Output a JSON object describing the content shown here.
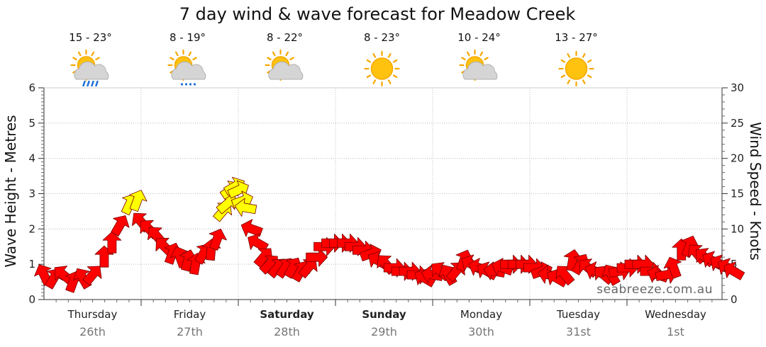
{
  "chart_data": {
    "type": "line",
    "title": "7 day wind & wave forecast for Meadow Creek",
    "ylabel_left": "Wave Height - Metres",
    "ylabel_right": "Wind Speed - Knots",
    "ylim_left": [
      0,
      6
    ],
    "ylim_right": [
      0,
      30
    ],
    "yticks_left": [
      "0",
      "1",
      "2",
      "3",
      "4",
      "5",
      "6"
    ],
    "yticks_right": [
      "0",
      "5",
      "10",
      "15",
      "20",
      "25",
      "30"
    ],
    "credit": "seabreeze.com.au",
    "days": [
      {
        "name": "Thursday",
        "date": "26th",
        "bold": false,
        "temp": "15 - 23°",
        "icon": "sun-cloud-rain-icon"
      },
      {
        "name": "Friday",
        "date": "27th",
        "bold": false,
        "temp": "8 - 19°",
        "icon": "sun-cloud-drizzle-icon"
      },
      {
        "name": "Saturday",
        "date": "28th",
        "bold": true,
        "temp": "8 - 22°",
        "icon": "sun-cloud-icon"
      },
      {
        "name": "Sunday",
        "date": "29th",
        "bold": true,
        "temp": "8 - 23°",
        "icon": "sun-icon"
      },
      {
        "name": "Monday",
        "date": "30th",
        "bold": false,
        "temp": "10 - 24°",
        "icon": "sun-cloud-icon"
      },
      {
        "name": "Tuesday",
        "date": "31st",
        "bold": false,
        "temp": "13 - 27°",
        "icon": "sun-icon"
      },
      {
        "name": "Wednesday",
        "date": "1st",
        "bold": false,
        "temp": "",
        "icon": ""
      }
    ],
    "series": [
      {
        "unit": "knots",
        "color_low": "#ff0000",
        "color_high": "#ffff00",
        "points": [
          {
            "t": 0.0,
            "speed": 3.5,
            "dir": 25
          },
          {
            "t": 0.1,
            "speed": 3.0,
            "dir": -30
          },
          {
            "t": 0.2,
            "speed": 3.5,
            "dir": 50
          },
          {
            "t": 0.3,
            "speed": 2.5,
            "dir": -20
          },
          {
            "t": 0.4,
            "speed": 3.0,
            "dir": 30
          },
          {
            "t": 0.5,
            "speed": 3.5,
            "dir": -40
          },
          {
            "t": 0.62,
            "speed": 6.0,
            "dir": 0
          },
          {
            "t": 0.7,
            "speed": 8.0,
            "dir": 0
          },
          {
            "t": 0.78,
            "speed": 10.5,
            "dir": -30
          },
          {
            "t": 0.88,
            "speed": 13.5,
            "dir": -25
          },
          {
            "t": 0.96,
            "speed": 14.0,
            "dir": -20
          },
          {
            "t": 1.0,
            "speed": 11.0,
            "dir": 40
          },
          {
            "t": 1.08,
            "speed": 10.0,
            "dir": 45
          },
          {
            "t": 1.16,
            "speed": 9.0,
            "dir": 40
          },
          {
            "t": 1.24,
            "speed": 7.5,
            "dir": 45
          },
          {
            "t": 1.32,
            "speed": 6.5,
            "dir": -20
          },
          {
            "t": 1.4,
            "speed": 6.0,
            "dir": 20
          },
          {
            "t": 1.48,
            "speed": 5.5,
            "dir": -15
          },
          {
            "t": 1.56,
            "speed": 5.0,
            "dir": -10
          },
          {
            "t": 1.64,
            "speed": 6.5,
            "dir": -30
          },
          {
            "t": 1.72,
            "speed": 7.0,
            "dir": -5
          },
          {
            "t": 1.78,
            "speed": 8.5,
            "dir": -20
          },
          {
            "t": 1.84,
            "speed": 12.5,
            "dir": -40
          },
          {
            "t": 1.88,
            "speed": 13.5,
            "dir": -50
          },
          {
            "t": 1.92,
            "speed": 15.5,
            "dir": -55
          },
          {
            "t": 1.96,
            "speed": 16.0,
            "dir": -60
          },
          {
            "t": 2.0,
            "speed": 15.5,
            "dir": -65
          },
          {
            "t": 2.04,
            "speed": 14.0,
            "dir": -70
          },
          {
            "t": 2.08,
            "speed": 13.0,
            "dir": 80
          },
          {
            "t": 2.14,
            "speed": 10.0,
            "dir": 70
          },
          {
            "t": 2.2,
            "speed": 8.0,
            "dir": 60
          },
          {
            "t": 2.26,
            "speed": 6.0,
            "dir": -40
          },
          {
            "t": 2.32,
            "speed": 5.0,
            "dir": -45
          },
          {
            "t": 2.4,
            "speed": 4.5,
            "dir": -40
          },
          {
            "t": 2.48,
            "speed": 4.5,
            "dir": -35
          },
          {
            "t": 2.56,
            "speed": 4.5,
            "dir": -30
          },
          {
            "t": 2.64,
            "speed": 4.0,
            "dir": -30
          },
          {
            "t": 2.72,
            "speed": 4.5,
            "dir": -40
          },
          {
            "t": 2.8,
            "speed": 6.0,
            "dir": -90
          },
          {
            "t": 2.88,
            "speed": 7.5,
            "dir": -90
          },
          {
            "t": 2.96,
            "speed": 8.0,
            "dir": -90
          },
          {
            "t": 3.04,
            "speed": 8.0,
            "dir": -90
          },
          {
            "t": 3.12,
            "speed": 8.0,
            "dir": -90
          },
          {
            "t": 3.2,
            "speed": 7.5,
            "dir": -90
          },
          {
            "t": 3.28,
            "speed": 7.0,
            "dir": -90
          },
          {
            "t": 3.36,
            "speed": 6.5,
            "dir": -70
          },
          {
            "t": 3.44,
            "speed": 5.5,
            "dir": 60
          },
          {
            "t": 3.52,
            "speed": 5.0,
            "dir": 40
          },
          {
            "t": 3.6,
            "speed": 4.5,
            "dir": -90
          },
          {
            "t": 3.68,
            "speed": 4.0,
            "dir": -90
          },
          {
            "t": 3.76,
            "speed": 4.0,
            "dir": -90
          },
          {
            "t": 3.84,
            "speed": 3.5,
            "dir": -90
          },
          {
            "t": 3.92,
            "speed": 3.0,
            "dir": 60
          },
          {
            "t": 4.0,
            "speed": 3.5,
            "dir": 80
          },
          {
            "t": 4.08,
            "speed": 4.0,
            "dir": 50
          },
          {
            "t": 4.16,
            "speed": 3.5,
            "dir": 30
          },
          {
            "t": 4.24,
            "speed": 4.0,
            "dir": -40
          },
          {
            "t": 4.32,
            "speed": 5.5,
            "dir": -20
          },
          {
            "t": 4.4,
            "speed": 5.0,
            "dir": 60
          },
          {
            "t": 4.48,
            "speed": 4.5,
            "dir": 70
          },
          {
            "t": 4.56,
            "speed": 4.0,
            "dir": 60
          },
          {
            "t": 4.64,
            "speed": 4.0,
            "dir": 80
          },
          {
            "t": 4.72,
            "speed": 4.5,
            "dir": 70
          },
          {
            "t": 4.8,
            "speed": 5.0,
            "dir": -90
          },
          {
            "t": 4.88,
            "speed": 5.0,
            "dir": -90
          },
          {
            "t": 4.96,
            "speed": 5.0,
            "dir": -90
          },
          {
            "t": 5.04,
            "speed": 4.5,
            "dir": -90
          },
          {
            "t": 5.12,
            "speed": 4.0,
            "dir": -70
          },
          {
            "t": 5.2,
            "speed": 3.5,
            "dir": 80
          },
          {
            "t": 5.28,
            "speed": 3.0,
            "dir": 60
          },
          {
            "t": 5.36,
            "speed": 3.5,
            "dir": 40
          },
          {
            "t": 5.44,
            "speed": 5.5,
            "dir": -10
          },
          {
            "t": 5.52,
            "speed": 5.0,
            "dir": -30
          },
          {
            "t": 5.6,
            "speed": 4.5,
            "dir": 50
          },
          {
            "t": 5.68,
            "speed": 4.0,
            "dir": 70
          },
          {
            "t": 5.76,
            "speed": 3.5,
            "dir": 50
          },
          {
            "t": 5.84,
            "speed": 3.5,
            "dir": 30
          },
          {
            "t": 5.92,
            "speed": 4.0,
            "dir": -80
          },
          {
            "t": 6.0,
            "speed": 4.5,
            "dir": -90
          },
          {
            "t": 6.08,
            "speed": 5.0,
            "dir": -90
          },
          {
            "t": 6.16,
            "speed": 5.0,
            "dir": -90
          },
          {
            "t": 6.24,
            "speed": 4.0,
            "dir": -90
          },
          {
            "t": 6.32,
            "speed": 3.5,
            "dir": 70
          },
          {
            "t": 6.4,
            "speed": 3.5,
            "dir": -80
          },
          {
            "t": 6.48,
            "speed": 4.5,
            "dir": 20
          },
          {
            "t": 6.56,
            "speed": 7.0,
            "dir": 0
          },
          {
            "t": 6.64,
            "speed": 7.5,
            "dir": -20
          },
          {
            "t": 6.72,
            "speed": 6.5,
            "dir": 40
          },
          {
            "t": 6.8,
            "speed": 6.0,
            "dir": 50
          },
          {
            "t": 6.88,
            "speed": 5.5,
            "dir": 60
          },
          {
            "t": 6.96,
            "speed": 5.0,
            "dir": 60
          },
          {
            "t": 7.04,
            "speed": 4.5,
            "dir": 60
          },
          {
            "t": 7.1,
            "speed": 4.0,
            "dir": 60
          }
        ]
      }
    ],
    "grid": true
  }
}
